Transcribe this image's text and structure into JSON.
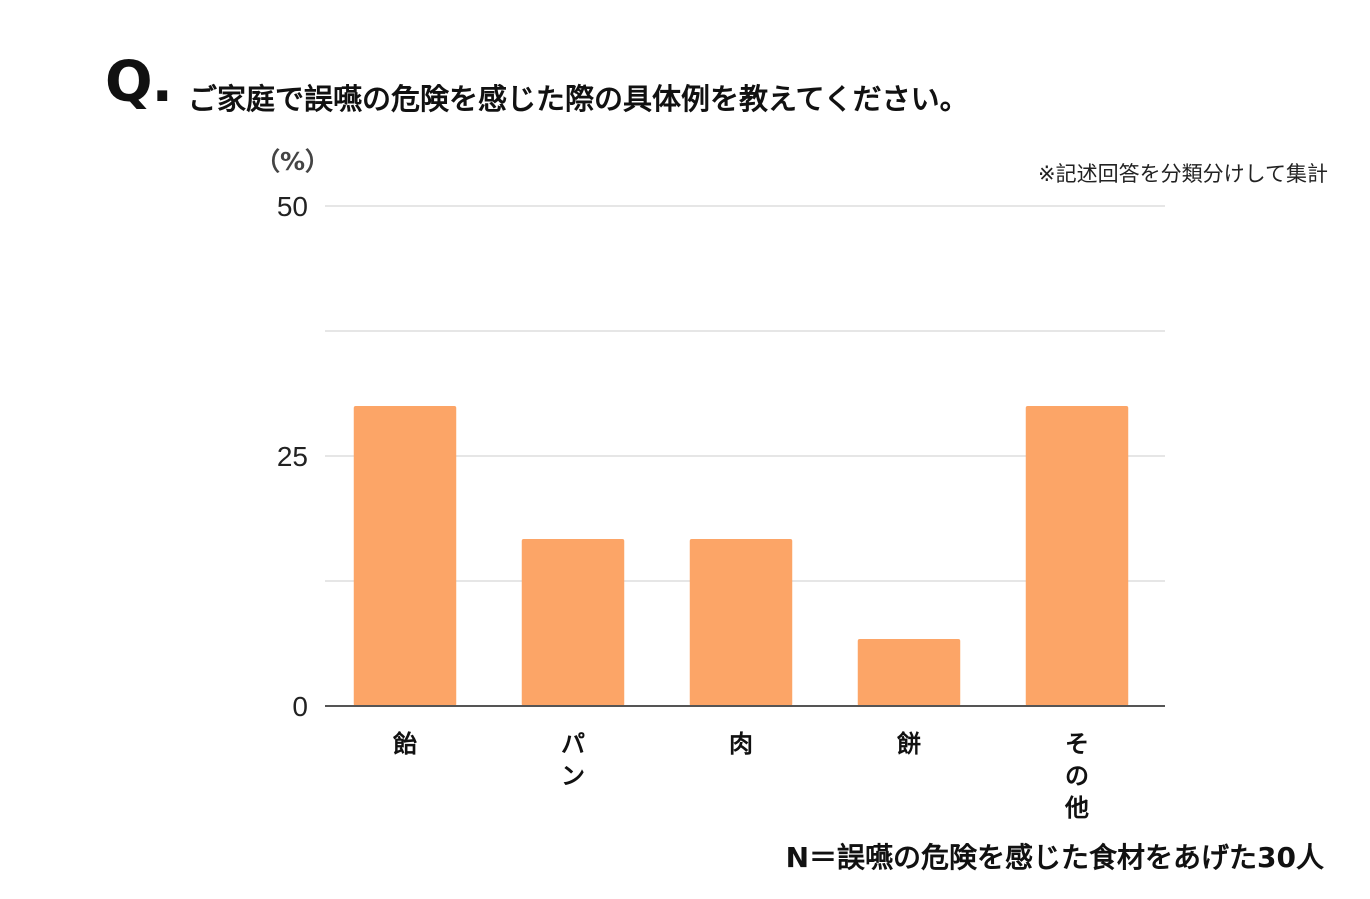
{
  "header": {
    "q_mark": "Q.",
    "question": "ご家庭で誤嚥の危険を感じた際の具体例を教えてください。"
  },
  "note": "※記述回答を分類分けして集計",
  "footnote": "N＝誤嚥の危険を感じた食材をあげた30人",
  "chart_data": {
    "type": "bar",
    "unit_label": "（%）",
    "categories": [
      "飴",
      "パン",
      "肉",
      "餅",
      "その他"
    ],
    "values": [
      30,
      16.7,
      16.7,
      6.7,
      30
    ],
    "ylim": [
      0,
      50
    ],
    "yticks": [
      0,
      25,
      50
    ],
    "grid": true,
    "bar_color": "#FCA567",
    "axis_color": "#555555",
    "grid_color": "#dddddd"
  }
}
